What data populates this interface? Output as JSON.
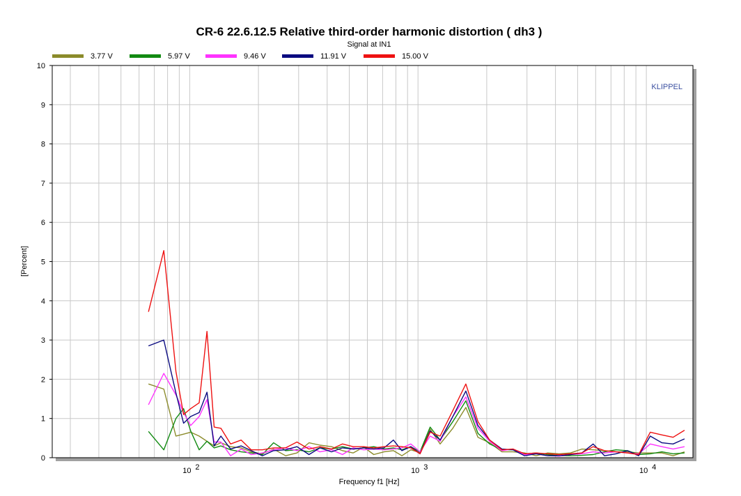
{
  "chart_data": {
    "type": "line",
    "title": "CR-6 22.6.12.5 Relative third-order harmonic distortion  ( dh3 )",
    "subtitle": "Signal at IN1",
    "xlabel": "Frequency f1  [Hz]",
    "ylabel": "[Percent]",
    "x_scale": "log",
    "xlim": [
      25,
      16000
    ],
    "ylim": [
      0,
      10
    ],
    "y_ticks": [
      "0",
      "1",
      "2",
      "3",
      "4",
      "5",
      "6",
      "7",
      "8",
      "9",
      "10"
    ],
    "x_tick_labels": [
      {
        "base": "10",
        "exp": "2",
        "value": 100
      },
      {
        "base": "10",
        "exp": "3",
        "value": 1000
      },
      {
        "base": "10",
        "exp": "4",
        "value": 10000
      }
    ],
    "grid": true,
    "legend_position": "top",
    "watermark": "KLIPPEL",
    "colors": {
      "watermark": "#3a4fa0",
      "grid": "#c8c8c8",
      "frame": "#000000",
      "axis_shadow": "#a0a0a0"
    },
    "x": [
      66,
      77,
      87,
      94,
      101,
      110,
      119,
      128,
      137,
      151,
      168,
      186,
      208,
      233,
      263,
      295,
      333,
      372,
      418,
      467,
      520,
      578,
      640,
      710,
      780,
      850,
      930,
      1020,
      1130,
      1250,
      1420,
      1620,
      1830,
      2060,
      2330,
      2610,
      2930,
      3290,
      3700,
      4150,
      4650,
      5220,
      5850,
      6560,
      7360,
      8260,
      9260,
      10400,
      11700,
      13100,
      14700
    ],
    "series": [
      {
        "name": "3.77 V",
        "color": "#8b8b2a",
        "values": [
          1.88,
          1.75,
          0.55,
          0.6,
          0.65,
          0.55,
          0.42,
          0.3,
          0.38,
          0.28,
          0.25,
          0.15,
          0.1,
          0.22,
          0.05,
          0.12,
          0.38,
          0.32,
          0.28,
          0.18,
          0.12,
          0.27,
          0.08,
          0.15,
          0.18,
          0.05,
          0.2,
          0.13,
          0.73,
          0.35,
          0.75,
          1.28,
          0.52,
          0.38,
          0.15,
          0.15,
          0.12,
          0.05,
          0.12,
          0.1,
          0.12,
          0.22,
          0.2,
          0.18,
          0.15,
          0.15,
          0.12,
          0.12,
          0.12,
          0.05,
          0.15
        ]
      },
      {
        "name": "5.97 V",
        "color": "#128a12",
        "values": [
          0.67,
          0.2,
          1.0,
          1.25,
          0.68,
          0.2,
          0.42,
          0.25,
          0.3,
          0.2,
          0.15,
          0.12,
          0.08,
          0.38,
          0.18,
          0.2,
          0.15,
          0.25,
          0.22,
          0.28,
          0.22,
          0.25,
          0.28,
          0.22,
          0.25,
          0.2,
          0.28,
          0.15,
          0.78,
          0.45,
          0.92,
          1.45,
          0.62,
          0.35,
          0.2,
          0.2,
          0.1,
          0.12,
          0.08,
          0.05,
          0.05,
          0.06,
          0.08,
          0.15,
          0.2,
          0.18,
          0.08,
          0.1,
          0.15,
          0.1,
          0.12
        ]
      },
      {
        "name": "9.46 V",
        "color": "#ff33ff",
        "values": [
          1.35,
          2.15,
          1.6,
          1.15,
          0.82,
          1.05,
          1.48,
          0.4,
          0.4,
          0.05,
          0.22,
          0.08,
          0.12,
          0.2,
          0.25,
          0.18,
          0.28,
          0.15,
          0.2,
          0.08,
          0.25,
          0.2,
          0.22,
          0.2,
          0.22,
          0.25,
          0.35,
          0.15,
          0.55,
          0.42,
          1.05,
          1.55,
          0.75,
          0.42,
          0.18,
          0.22,
          0.08,
          0.1,
          0.05,
          0.04,
          0.08,
          0.1,
          0.15,
          0.12,
          0.15,
          0.12,
          0.1,
          0.35,
          0.28,
          0.22,
          0.28
        ]
      },
      {
        "name": "11.91 V",
        "color": "#0a0a80",
        "values": [
          2.85,
          3.0,
          1.65,
          0.88,
          1.05,
          1.15,
          1.67,
          0.3,
          0.55,
          0.22,
          0.3,
          0.18,
          0.05,
          0.18,
          0.2,
          0.28,
          0.08,
          0.25,
          0.15,
          0.25,
          0.22,
          0.25,
          0.22,
          0.25,
          0.45,
          0.18,
          0.28,
          0.1,
          0.68,
          0.45,
          1.05,
          1.7,
          0.82,
          0.45,
          0.22,
          0.2,
          0.05,
          0.1,
          0.05,
          0.05,
          0.08,
          0.12,
          0.35,
          0.05,
          0.1,
          0.18,
          0.05,
          0.55,
          0.38,
          0.35,
          0.48
        ]
      },
      {
        "name": "15.00 V",
        "color": "#ee1111",
        "values": [
          3.72,
          5.28,
          2.2,
          1.1,
          1.25,
          1.4,
          3.22,
          0.78,
          0.75,
          0.35,
          0.45,
          0.2,
          0.2,
          0.25,
          0.25,
          0.4,
          0.22,
          0.28,
          0.22,
          0.35,
          0.28,
          0.28,
          0.25,
          0.28,
          0.3,
          0.28,
          0.25,
          0.1,
          0.65,
          0.55,
          1.2,
          1.88,
          0.92,
          0.45,
          0.2,
          0.22,
          0.1,
          0.12,
          0.1,
          0.08,
          0.1,
          0.12,
          0.28,
          0.18,
          0.15,
          0.12,
          0.08,
          0.65,
          0.58,
          0.52,
          0.7
        ]
      }
    ]
  }
}
